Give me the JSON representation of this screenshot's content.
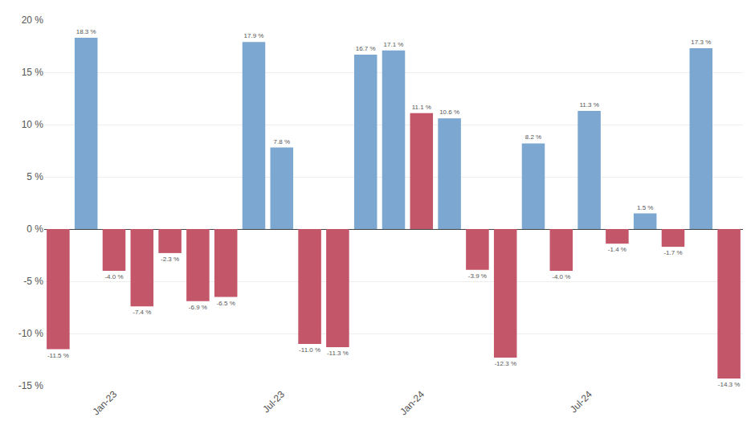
{
  "chart_data": {
    "type": "bar",
    "categories": [
      null,
      null,
      "Jan-23",
      null,
      null,
      null,
      null,
      null,
      "Jul-23",
      null,
      null,
      null,
      null,
      "Jan-24",
      null,
      null,
      null,
      null,
      null,
      "Jul-24",
      null,
      null,
      null,
      null,
      null
    ],
    "values": [
      -11.5,
      18.3,
      -4.0,
      -7.4,
      -2.3,
      -6.9,
      -6.5,
      17.9,
      7.8,
      -11.0,
      -11.3,
      16.7,
      17.1,
      11.1,
      10.6,
      -3.9,
      -12.3,
      8.2,
      -4.0,
      11.3,
      -1.4,
      1.5,
      -1.7,
      17.3,
      -14.3
    ],
    "value_labels": [
      "-11.5 %",
      "18.3 %",
      "-4.0 %",
      "-7.4 %",
      "-2.3 %",
      "-6.9 %",
      "-6.5 %",
      "17.9 %",
      "7.8 %",
      "-11.0 %",
      "-11.3 %",
      "16.7 %",
      "17.1 %",
      "11.1 %",
      "10.6 %",
      "-3.9 %",
      "-12.3 %",
      "8.2 %",
      "-4.0 %",
      "11.3 %",
      "-1.4 %",
      "1.5 %",
      "-1.7 %",
      "17.3 %",
      "-14.3 %"
    ],
    "colors": [
      "#C4566A",
      "#7BA7D0",
      "#C4566A",
      "#C4566A",
      "#C4566A",
      "#C4566A",
      "#C4566A",
      "#7BA7D0",
      "#7BA7D0",
      "#C4566A",
      "#C4566A",
      "#7BA7D0",
      "#7BA7D0",
      "#C4566A",
      "#7BA7D0",
      "#C4566A",
      "#C4566A",
      "#7BA7D0",
      "#C4566A",
      "#7BA7D0",
      "#C4566A",
      "#7BA7D0",
      "#C4566A",
      "#7BA7D0",
      "#C4566A"
    ],
    "ylim": [
      -15,
      20
    ],
    "yticks": [
      {
        "value": -15,
        "label": "-15 %"
      },
      {
        "value": -10,
        "label": "-10 %"
      },
      {
        "value": -5,
        "label": "-5 %"
      },
      {
        "value": 0,
        "label": "0 %"
      },
      {
        "value": 5,
        "label": "5 %"
      },
      {
        "value": 10,
        "label": "10 %"
      },
      {
        "value": 15,
        "label": "15 %"
      },
      {
        "value": 20,
        "label": "20 %"
      }
    ],
    "grid": true,
    "data_labels": true
  }
}
